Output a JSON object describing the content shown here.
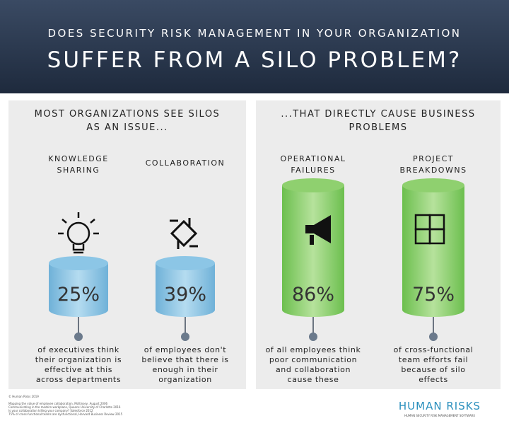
{
  "header": {
    "line1": "DOES SECURITY RISK MANAGEMENT IN YOUR ORGANIZATION",
    "line2": "SUFFER FROM A SILO PROBLEM?"
  },
  "panels": [
    {
      "title": [
        "MOST ORGANIZATIONS SEE SILOS",
        "AS AN ISSUE..."
      ],
      "items": [
        {
          "label": [
            "KNOWLEDGE",
            "SHARING"
          ],
          "value": "25%",
          "description": [
            "of executives think",
            "their organization is",
            "effective at this",
            "across departments"
          ]
        },
        {
          "label": [
            "COLLABORATION"
          ],
          "value": "39%",
          "description": [
            "of employees don't",
            "believe that there is",
            "enough in their",
            "organization"
          ]
        }
      ]
    },
    {
      "title": [
        "...THAT DIRECTLY CAUSE BUSINESS",
        "PROBLEMS"
      ],
      "items": [
        {
          "label": [
            "OPERATIONAL",
            "FAILURES"
          ],
          "value": "86%",
          "description": [
            "of all employees think",
            "poor communication",
            "and collaboration",
            "cause these"
          ]
        },
        {
          "label": [
            "PROJECT",
            "BREAKDOWNS"
          ],
          "value": "75%",
          "description": [
            "of cross-functional",
            "team efforts fail",
            "because of silo",
            "effects"
          ]
        }
      ]
    }
  ],
  "footer": {
    "copyright": "© Human Risks 2019",
    "sources": [
      "Mapping the value of employee collaboration, McKinsey, August 2006",
      "Communicating in the modern workplace, Queens University of Charlotte 2016",
      "Is your collaboration killing your company? Salesforce 2012",
      "75% of cross-functional teams are dysfunctional, Harvard Business Review 2015"
    ],
    "logo": "HUMAN RISKS",
    "tagline": "HUMAN SECURITY RISK MANAGEMENT SOFTWARE"
  }
}
